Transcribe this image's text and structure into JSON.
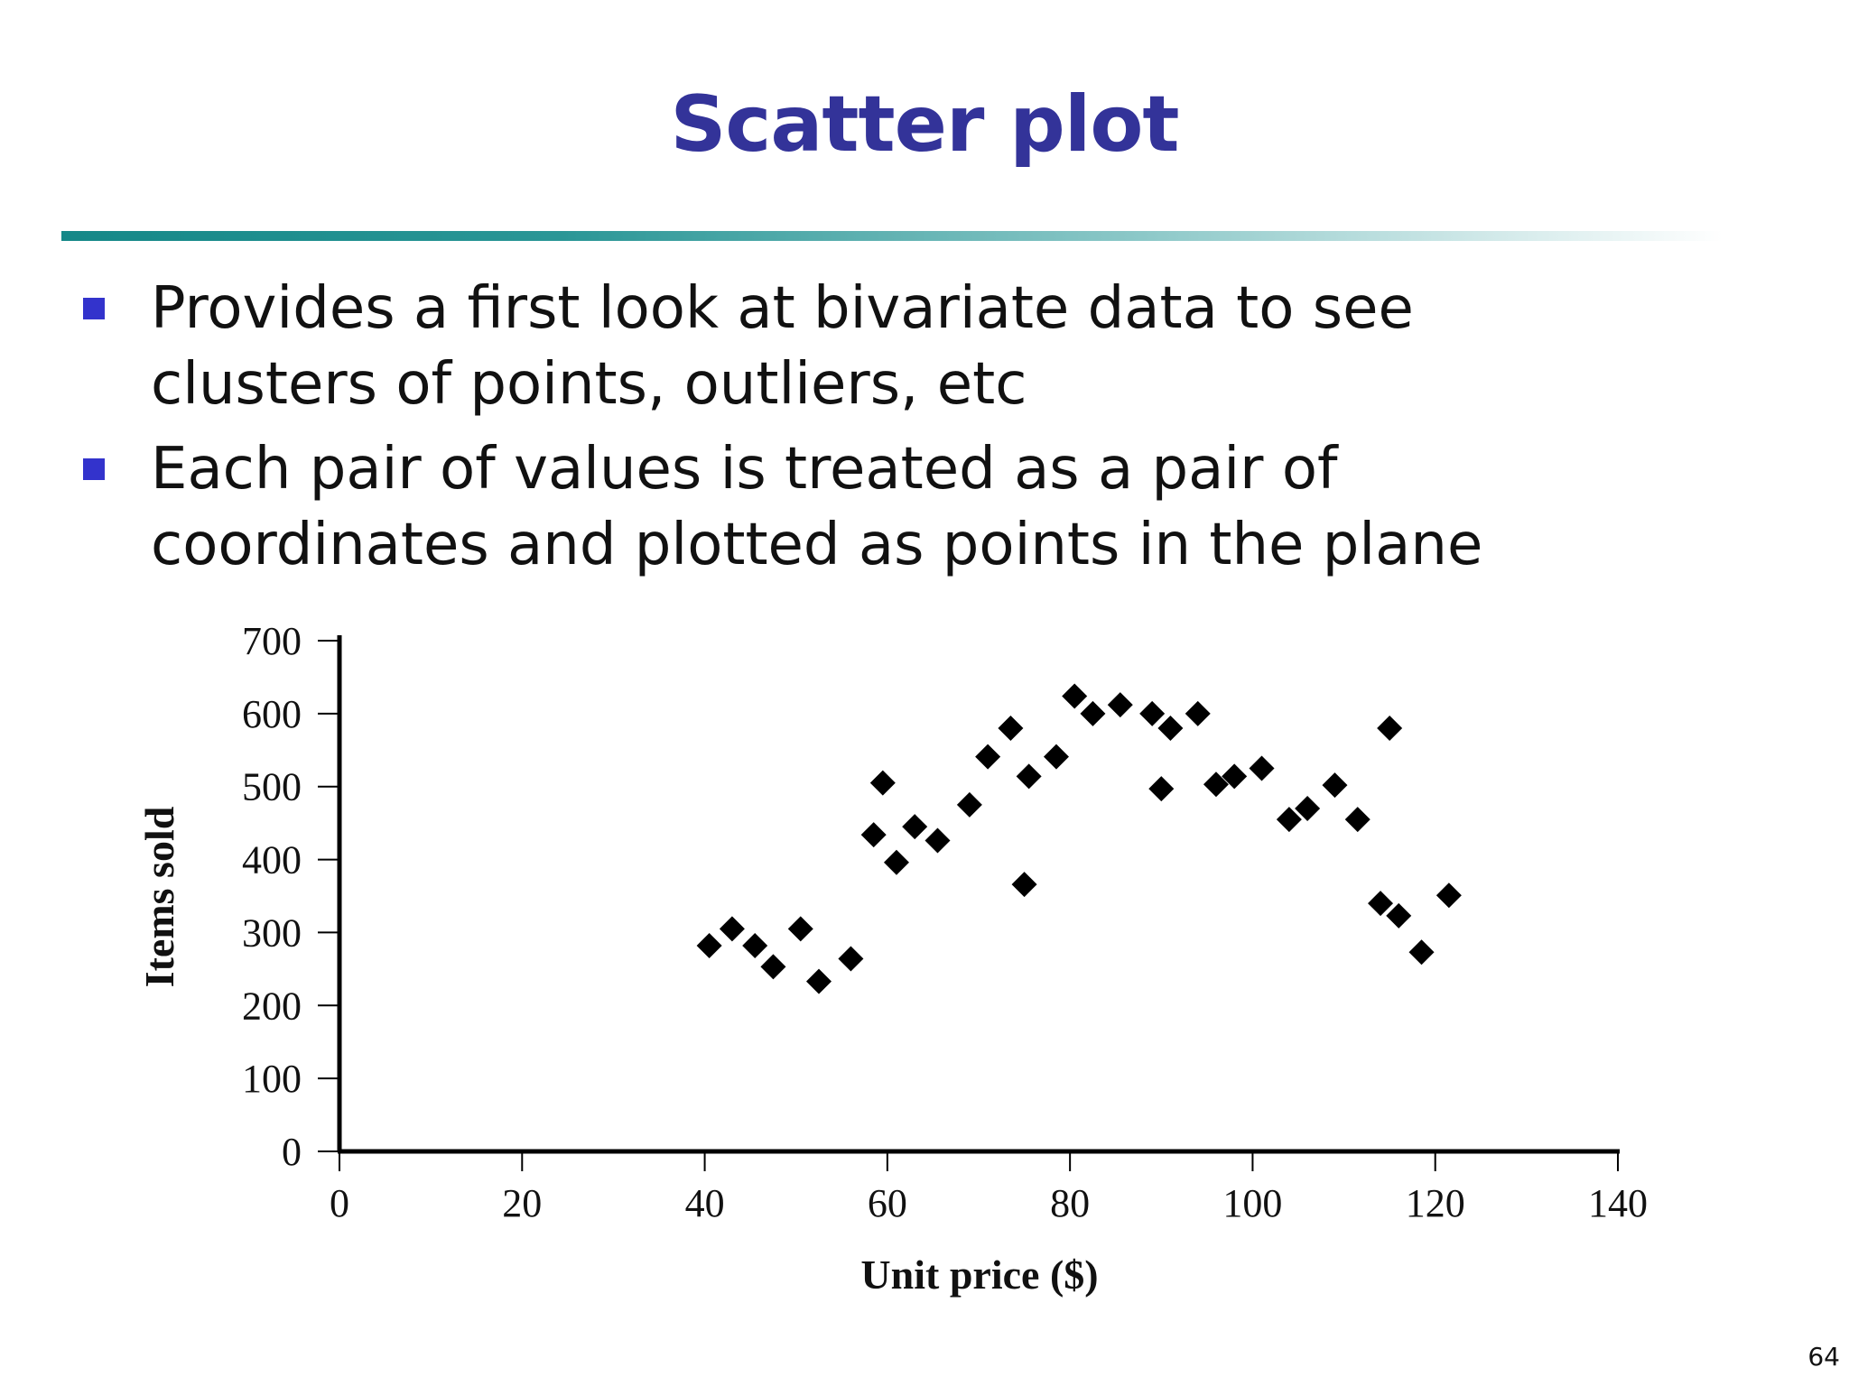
{
  "slide": {
    "title": "Scatter plot",
    "page_number": "64",
    "bullets": [
      "Provides a first look at bivariate data to see clusters of points, outliers, etc",
      "Each pair of values is treated as a pair of coordinates and plotted as points in the plane"
    ],
    "colors": {
      "title": "#333399",
      "bullet_marker": "#3333cc",
      "rule": "#158888",
      "points": "#000000"
    }
  },
  "chart_data": {
    "type": "scatter",
    "xlabel": "Unit price ($)",
    "ylabel": "Items sold",
    "xlim": [
      0,
      140
    ],
    "ylim": [
      0,
      700
    ],
    "xticks": [
      0,
      20,
      40,
      60,
      80,
      100,
      120,
      140
    ],
    "yticks": [
      0,
      100,
      200,
      300,
      400,
      500,
      600,
      700
    ],
    "marker": "diamond",
    "grid": false,
    "points": [
      {
        "x": 40.5,
        "y": 282
      },
      {
        "x": 43,
        "y": 305
      },
      {
        "x": 45.5,
        "y": 282
      },
      {
        "x": 47.5,
        "y": 253
      },
      {
        "x": 50.5,
        "y": 305
      },
      {
        "x": 52.5,
        "y": 233
      },
      {
        "x": 56,
        "y": 264
      },
      {
        "x": 58.5,
        "y": 434
      },
      {
        "x": 59.5,
        "y": 505
      },
      {
        "x": 61,
        "y": 396
      },
      {
        "x": 63,
        "y": 445
      },
      {
        "x": 65.5,
        "y": 426
      },
      {
        "x": 69,
        "y": 475
      },
      {
        "x": 71,
        "y": 541
      },
      {
        "x": 73.5,
        "y": 580
      },
      {
        "x": 75,
        "y": 366
      },
      {
        "x": 75.5,
        "y": 514
      },
      {
        "x": 78.5,
        "y": 541
      },
      {
        "x": 80.5,
        "y": 624
      },
      {
        "x": 82.5,
        "y": 600
      },
      {
        "x": 85.5,
        "y": 612
      },
      {
        "x": 89,
        "y": 600
      },
      {
        "x": 90,
        "y": 497
      },
      {
        "x": 91,
        "y": 580
      },
      {
        "x": 94,
        "y": 600
      },
      {
        "x": 96,
        "y": 503
      },
      {
        "x": 98,
        "y": 514
      },
      {
        "x": 101,
        "y": 525
      },
      {
        "x": 104,
        "y": 455
      },
      {
        "x": 106,
        "y": 470
      },
      {
        "x": 109,
        "y": 502
      },
      {
        "x": 111.5,
        "y": 455
      },
      {
        "x": 114,
        "y": 340
      },
      {
        "x": 115,
        "y": 580
      },
      {
        "x": 116,
        "y": 323
      },
      {
        "x": 118.5,
        "y": 273
      },
      {
        "x": 121.5,
        "y": 351
      }
    ]
  }
}
